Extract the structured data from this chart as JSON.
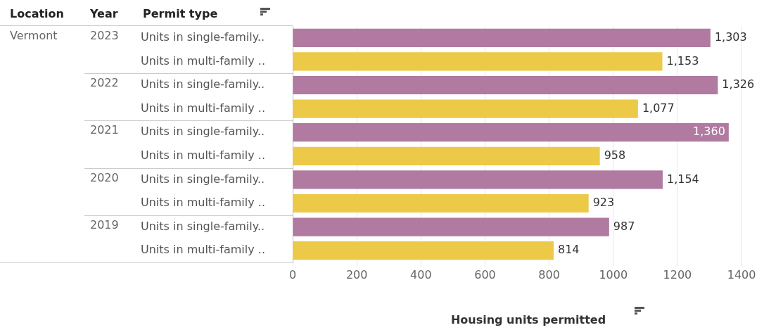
{
  "chart_data": {
    "type": "bar",
    "orientation": "horizontal",
    "xlabel": "Housing units permitted",
    "ylabel": "Permit type",
    "categories": [
      "Units in single-family..",
      "Units in multi-family ..",
      "Units in single-family..",
      "Units in multi-family ..",
      "Units in single-family..",
      "Units in multi-family ..",
      "Units in single-family..",
      "Units in multi-family ..",
      "Units in single-family..",
      "Units in multi-family .."
    ],
    "values": [
      1303,
      1153,
      1326,
      1077,
      1360,
      958,
      1154,
      923,
      987,
      814
    ],
    "colors": [
      "#b07aa1",
      "#edc948",
      "#b07aa1",
      "#edc948",
      "#b07aa1",
      "#edc948",
      "#b07aa1",
      "#edc948",
      "#b07aa1",
      "#edc948"
    ],
    "value_labels": [
      "1,303",
      "1,153",
      "1,326",
      "1,077",
      "1,360",
      "958",
      "1,154",
      "923",
      "987",
      "814"
    ],
    "xlim": [
      0,
      1470
    ],
    "xticks": [
      0,
      200,
      400,
      600,
      800,
      1000,
      1200,
      1400
    ],
    "grid": "x",
    "legend": false,
    "annotations": [
      "Location",
      "Year",
      "Vermont",
      "2023",
      "2022",
      "2021",
      "2020",
      "2019"
    ]
  }
}
